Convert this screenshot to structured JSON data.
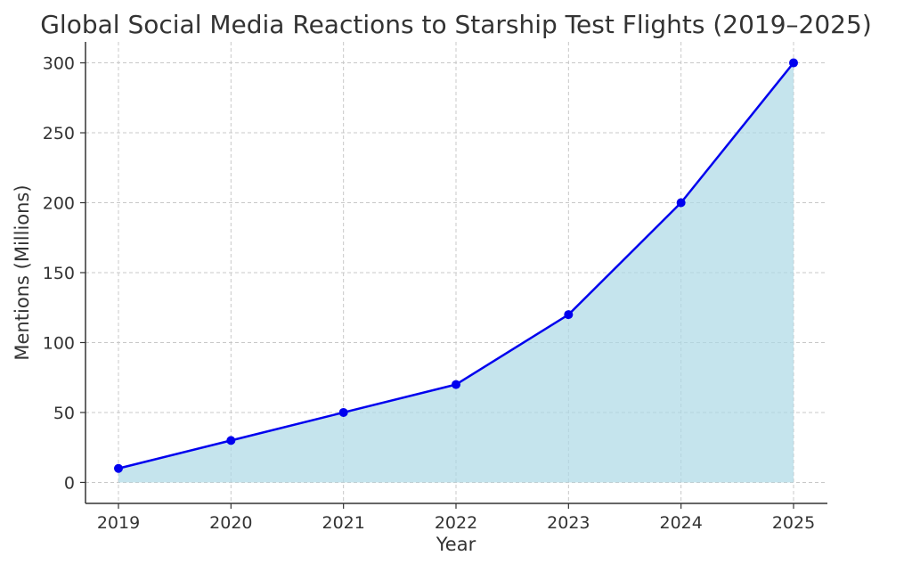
{
  "chart_data": {
    "type": "area",
    "title": "Global Social Media Reactions to Starship Test Flights (2019–2025)",
    "xlabel": "Year",
    "ylabel": "Mentions (Millions)",
    "categories": [
      "2019",
      "2020",
      "2021",
      "2022",
      "2023",
      "2024",
      "2025"
    ],
    "values": [
      10,
      30,
      50,
      70,
      120,
      200,
      300
    ],
    "yticks": [
      0,
      50,
      100,
      150,
      200,
      250,
      300
    ],
    "ylim": [
      -15,
      315
    ],
    "grid": true,
    "line_color": "#0000ee",
    "marker_color": "#0000ee",
    "fill_color": "#add8e6"
  }
}
